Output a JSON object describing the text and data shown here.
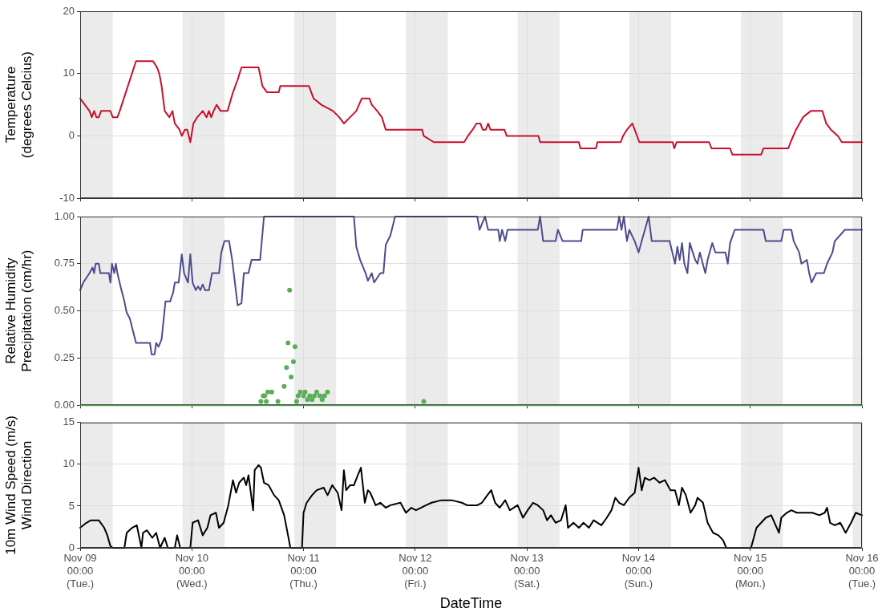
{
  "chart_data": [
    {
      "type": "line",
      "ylabel": "Temperature\n(degrees Celcius)",
      "xlim": [
        "--11-09T00:00",
        "--11-16T00:00"
      ],
      "ylim": [
        -10,
        20
      ],
      "yticks": [
        -10,
        0,
        10,
        20
      ],
      "tick_labels": "y",
      "grid": true,
      "xticks": [
        {
          "value": "--11-09T00:00",
          "label": null
        },
        {
          "value": "--11-10T00:00",
          "label": null
        },
        {
          "value": "--11-11T00:00",
          "label": null
        },
        {
          "value": "--11-12T00:00",
          "label": null
        },
        {
          "value": "--11-13T00:00",
          "label": null
        },
        {
          "value": "--11-14T00:00",
          "label": null
        },
        {
          "value": "--11-15T00:00",
          "label": null
        },
        {
          "value": "--11-16T00:00",
          "label": null
        }
      ],
      "bands": [
        {
          "axis": "x",
          "from": "--11-09T00:00",
          "to": "--11-09T07:00",
          "color": "#ebebeb"
        },
        {
          "axis": "x",
          "from": "--11-09T22:00",
          "to": "--11-10T07:00",
          "color": "#ebebeb"
        },
        {
          "axis": "x",
          "from": "--11-10T22:00",
          "to": "--11-11T07:00",
          "color": "#ebebeb"
        },
        {
          "axis": "x",
          "from": "--11-11T22:00",
          "to": "--11-12T07:00",
          "color": "#ebebeb"
        },
        {
          "axis": "x",
          "from": "--11-12T22:00",
          "to": "--11-13T07:00",
          "color": "#ebebeb"
        },
        {
          "axis": "x",
          "from": "--11-13T22:00",
          "to": "--11-14T07:00",
          "color": "#ebebeb"
        },
        {
          "axis": "x",
          "from": "--11-14T22:00",
          "to": "--11-15T07:00",
          "color": "#ebebeb"
        },
        {
          "axis": "x",
          "from": "--11-15T22:00",
          "to": "--11-16T00:00",
          "color": "#ebebeb"
        }
      ],
      "series": [
        {
          "type": "line",
          "color": "#c8102e",
          "marker": "none",
          "x": [
            "--11-09T00:00",
            "--11-09T01:00",
            "--11-09T02:00",
            "--11-09T02:30",
            "--11-09T03:00",
            "--11-09T03:30",
            "--11-09T04:00",
            "--11-09T04:30",
            "--11-09T06:30",
            "--11-09T07:00",
            "--11-09T08:00",
            "--11-09T08:30",
            "--11-09T12:00",
            "--11-09T15:40",
            "--11-09T16:30",
            "--11-09T17:00",
            "--11-09T17:30",
            "--11-09T18:10",
            "--11-09T19:10",
            "--11-09T19:50",
            "--11-09T20:20",
            "--11-09T21:20",
            "--11-09T21:50",
            "--11-09T22:30",
            "--11-09T23:00",
            "--11-09T23:40",
            "--11-10T00:20",
            "--11-10T01:10",
            "--11-10T02:20",
            "--11-10T03:10",
            "--11-10T03:40",
            "--11-10T04:10",
            "--11-10T04:40",
            "--11-10T05:20",
            "--11-10T06:10",
            "--11-10T07:40",
            "--11-10T08:50",
            "--11-10T09:50",
            "--11-10T10:40",
            "--11-10T14:20",
            "--11-10T15:10",
            "--11-10T16:10",
            "--11-10T18:40",
            "--11-10T19:00",
            "--11-11T01:10",
            "--11-11T01:40",
            "--11-11T02:10",
            "--11-11T03:50",
            "--11-11T06:20",
            "--11-11T07:40",
            "--11-11T08:40",
            "--11-11T10:00",
            "--11-11T11:20",
            "--11-11T12:30",
            "--11-11T14:10",
            "--11-11T14:40",
            "--11-11T15:50",
            "--11-11T16:50",
            "--11-11T17:40",
            "--11-12T01:30",
            "--11-12T01:50",
            "--11-12T04:00",
            "--11-12T10:30",
            "--11-12T11:20",
            "--11-12T12:20",
            "--11-12T13:10",
            "--11-12T14:00",
            "--11-12T14:30",
            "--11-12T15:10",
            "--11-12T15:40",
            "--11-12T16:10",
            "--11-12T19:10",
            "--11-12T19:40",
            "--11-13T02:30",
            "--11-13T02:50",
            "--11-13T11:10",
            "--11-13T11:30",
            "--11-13T14:50",
            "--11-13T15:10",
            "--11-13T20:10",
            "--11-13T20:40",
            "--11-13T21:30",
            "--11-13T22:40",
            "--11-13T23:10",
            "--11-14T00:10",
            "--11-14T07:20",
            "--11-14T07:40",
            "--11-14T08:10",
            "--11-14T15:10",
            "--11-14T15:40",
            "--11-14T19:40",
            "--11-14T20:10",
            "--11-15T02:20",
            "--11-15T02:50",
            "--11-15T08:10",
            "--11-15T08:40",
            "--11-15T09:50",
            "--11-15T11:20",
            "--11-15T13:00",
            "--11-15T15:30",
            "--11-15T16:20",
            "--11-15T17:20",
            "--11-15T18:50",
            "--11-15T19:40",
            "--11-16T00:00"
          ],
          "values": [
            6,
            5,
            4,
            3,
            4,
            3,
            3,
            4,
            4,
            3,
            3,
            4,
            12,
            12,
            11,
            10,
            8,
            4,
            3,
            4,
            2,
            1,
            0,
            1,
            1,
            -1,
            2,
            3,
            4,
            3,
            4,
            3,
            4,
            5,
            4,
            4,
            7,
            9,
            11,
            11,
            8,
            7,
            7,
            8,
            8,
            7,
            6,
            5,
            4,
            3,
            2,
            3,
            4,
            6,
            6,
            5,
            4,
            3,
            1,
            1,
            0,
            -1,
            -1,
            0,
            1,
            2,
            2,
            1,
            1,
            2,
            1,
            1,
            0,
            0,
            -1,
            -1,
            -2,
            -2,
            -1,
            -1,
            0,
            1,
            2,
            1,
            -1,
            -1,
            -2,
            -1,
            -1,
            -2,
            -2,
            -3,
            -3,
            -2,
            -2,
            -1,
            1,
            3,
            4,
            4,
            2,
            1,
            0,
            -1,
            -1
          ]
        }
      ]
    },
    {
      "type": "line",
      "ylabel": "Relative Humidity\nPrecipitation (cm/hr)",
      "xlim": [
        "--11-09T00:00",
        "--11-16T00:00"
      ],
      "ylim": [
        0,
        1
      ],
      "yticks": [
        {
          "value": 0,
          "label": "0.00"
        },
        {
          "value": 0.25,
          "label": "0.25"
        },
        {
          "value": 0.5,
          "label": "0.50"
        },
        {
          "value": 0.75,
          "label": "0.75"
        },
        {
          "value": 1,
          "label": "1.00"
        }
      ],
      "tick_labels": "y",
      "grid": true,
      "xticks": [
        {
          "value": "--11-09T00:00",
          "label": null
        },
        {
          "value": "--11-10T00:00",
          "label": null
        },
        {
          "value": "--11-11T00:00",
          "label": null
        },
        {
          "value": "--11-12T00:00",
          "label": null
        },
        {
          "value": "--11-13T00:00",
          "label": null
        },
        {
          "value": "--11-14T00:00",
          "label": null
        },
        {
          "value": "--11-15T00:00",
          "label": null
        },
        {
          "value": "--11-16T00:00",
          "label": null
        }
      ],
      "bands": [
        {
          "axis": "x",
          "from": "--11-09T00:00",
          "to": "--11-09T07:00",
          "color": "#ebebeb"
        },
        {
          "axis": "x",
          "from": "--11-09T22:00",
          "to": "--11-10T07:00",
          "color": "#ebebeb"
        },
        {
          "axis": "x",
          "from": "--11-10T22:00",
          "to": "--11-11T07:00",
          "color": "#ebebeb"
        },
        {
          "axis": "x",
          "from": "--11-11T22:00",
          "to": "--11-12T07:00",
          "color": "#ebebeb"
        },
        {
          "axis": "x",
          "from": "--11-12T22:00",
          "to": "--11-13T07:00",
          "color": "#ebebeb"
        },
        {
          "axis": "x",
          "from": "--11-13T22:00",
          "to": "--11-14T07:00",
          "color": "#ebebeb"
        },
        {
          "axis": "x",
          "from": "--11-14T22:00",
          "to": "--11-15T07:00",
          "color": "#ebebeb"
        },
        {
          "axis": "x",
          "from": "--11-15T22:00",
          "to": "--11-16T00:00",
          "color": "#ebebeb"
        }
      ],
      "series": [
        {
          "type": "line",
          "color": "#4e4b8d",
          "marker": "none",
          "x": [
            "--11-09T00:00",
            "--11-09T00:40",
            "--11-09T02:00",
            "--11-09T02:40",
            "--11-09T03:00",
            "--11-09T03:20",
            "--11-09T04:00",
            "--11-09T04:20",
            "--11-09T06:10",
            "--11-09T06:30",
            "--11-09T06:50",
            "--11-09T07:20",
            "--11-09T07:40",
            "--11-09T08:00",
            "--11-09T08:40",
            "--11-09T09:30",
            "--11-09T10:00",
            "--11-09T10:40",
            "--11-09T12:00",
            "--11-09T15:00",
            "--11-09T15:20",
            "--11-09T16:00",
            "--11-09T16:20",
            "--11-09T16:50",
            "--11-09T17:30",
            "--11-09T18:20",
            "--11-09T19:20",
            "--11-09T20:00",
            "--11-09T20:20",
            "--11-09T21:10",
            "--11-09T21:50",
            "--11-09T22:20",
            "--11-09T23:10",
            "--11-09T23:40",
            "--11-10T00:10",
            "--11-10T00:50",
            "--11-10T01:20",
            "--11-10T01:50",
            "--11-10T02:20",
            "--11-10T02:50",
            "--11-10T03:40",
            "--11-10T04:20",
            "--11-10T05:50",
            "--11-10T06:20",
            "--11-10T07:00",
            "--11-10T08:00",
            "--11-10T08:40",
            "--11-10T09:50",
            "--11-10T10:40",
            "--11-10T11:10",
            "--11-10T12:10",
            "--11-10T12:50",
            "--11-10T14:40",
            "--11-10T15:30",
            "--11-11T10:50",
            "--11-11T11:20",
            "--11-11T12:10",
            "--11-11T13:20",
            "--11-11T13:50",
            "--11-11T14:40",
            "--11-11T15:10",
            "--11-11T16:30",
            "--11-11T17:10",
            "--11-11T17:40",
            "--11-11T18:40",
            "--11-11T19:40",
            "--11-12T13:20",
            "--11-12T13:50",
            "--11-12T15:00",
            "--11-12T15:40",
            "--11-12T17:50",
            "--11-12T18:10",
            "--11-12T18:40",
            "--11-12T19:20",
            "--11-12T19:50",
            "--11-13T02:20",
            "--11-13T02:50",
            "--11-13T03:30",
            "--11-13T06:10",
            "--11-13T06:40",
            "--11-13T07:40",
            "--11-13T11:40",
            "--11-13T12:00",
            "--11-13T19:20",
            "--11-13T19:50",
            "--11-13T20:20",
            "--11-13T20:50",
            "--11-13T21:30",
            "--11-13T22:00",
            "--11-13T23:10",
            "--11-14T00:00",
            "--11-14T00:40",
            "--11-14T02:10",
            "--11-14T02:50",
            "--11-14T06:40",
            "--11-14T07:50",
            "--11-14T08:20",
            "--11-14T08:50",
            "--11-14T09:20",
            "--11-14T09:50",
            "--11-14T10:30",
            "--11-14T11:00",
            "--11-14T12:10",
            "--11-14T12:40",
            "--11-14T13:10",
            "--11-14T14:20",
            "--11-14T14:50",
            "--11-14T15:50",
            "--11-14T16:30",
            "--11-14T18:40",
            "--11-14T19:10",
            "--11-14T19:40",
            "--11-14T20:40",
            "--11-15T02:50",
            "--11-15T03:20",
            "--11-15T06:40",
            "--11-15T07:10",
            "--11-15T08:50",
            "--11-15T09:20",
            "--11-15T10:30",
            "--11-15T11:00",
            "--11-15T12:10",
            "--11-15T12:40",
            "--11-15T13:10",
            "--11-15T14:10",
            "--11-15T15:50",
            "--11-15T16:30",
            "--11-15T17:40",
            "--11-15T18:10",
            "--11-15T20:20",
            "--11-16T00:00"
          ],
          "values": [
            0.61,
            0.65,
            0.7,
            0.73,
            0.7,
            0.75,
            0.75,
            0.7,
            0.7,
            0.65,
            0.75,
            0.7,
            0.75,
            0.7,
            0.63,
            0.55,
            0.49,
            0.46,
            0.33,
            0.33,
            0.27,
            0.27,
            0.33,
            0.31,
            0.35,
            0.55,
            0.55,
            0.6,
            0.65,
            0.65,
            0.8,
            0.7,
            0.65,
            0.8,
            0.65,
            0.61,
            0.63,
            0.61,
            0.64,
            0.61,
            0.61,
            0.7,
            0.7,
            0.81,
            0.87,
            0.87,
            0.77,
            0.53,
            0.54,
            0.7,
            0.7,
            0.77,
            0.77,
            1,
            1,
            0.84,
            0.77,
            0.7,
            0.66,
            0.7,
            0.65,
            0.7,
            0.7,
            0.85,
            0.9,
            1,
            1,
            0.93,
            1,
            0.93,
            0.93,
            0.87,
            0.93,
            0.87,
            0.93,
            0.93,
            1,
            0.87,
            0.87,
            0.93,
            0.87,
            0.87,
            0.93,
            0.93,
            1,
            0.93,
            1,
            0.87,
            0.93,
            0.87,
            0.81,
            0.87,
            1,
            0.87,
            0.87,
            0.75,
            0.84,
            0.77,
            0.86,
            0.75,
            0.7,
            0.86,
            0.77,
            0.75,
            0.81,
            0.7,
            0.77,
            0.86,
            0.81,
            0.81,
            0.75,
            0.86,
            0.93,
            0.93,
            0.87,
            0.87,
            0.93,
            0.93,
            0.87,
            0.81,
            0.75,
            0.77,
            0.7,
            0.65,
            0.7,
            0.7,
            0.75,
            0.81,
            0.87,
            0.93,
            0.93
          ]
        },
        {
          "type": "line",
          "color": "#5aae5a",
          "marker": "none",
          "x": [
            "--11-09T00:00",
            "--11-16T00:00"
          ],
          "values": [
            0,
            0
          ]
        },
        {
          "type": "scatter",
          "color": "#5aae5a",
          "marker": "circle",
          "x": [
            "--11-10T14:50",
            "--11-10T15:20",
            "--11-10T15:40",
            "--11-10T16:00",
            "--11-10T16:20",
            "--11-10T17:10",
            "--11-10T18:30",
            "--11-10T19:50",
            "--11-10T20:20",
            "--11-10T20:40",
            "--11-10T21:00",
            "--11-10T21:20",
            "--11-10T21:50",
            "--11-10T22:10",
            "--11-10T22:30",
            "--11-10T22:50",
            "--11-10T23:20",
            "--11-11T00:00",
            "--11-11T00:20",
            "--11-11T00:50",
            "--11-11T01:20",
            "--11-11T01:50",
            "--11-11T02:20",
            "--11-11T02:50",
            "--11-11T03:30",
            "--11-11T04:00",
            "--11-11T04:30",
            "--11-11T05:10",
            "--11-12T01:50"
          ],
          "values": [
            0.02,
            0.05,
            0.05,
            0.02,
            0.07,
            0.07,
            0.02,
            0.1,
            0.2,
            0.33,
            0.61,
            0.15,
            0.23,
            0.31,
            0.02,
            0.05,
            0.07,
            0.05,
            0.07,
            0.03,
            0.05,
            0.03,
            0.05,
            0.07,
            0.05,
            0.03,
            0.05,
            0.07,
            0.02
          ]
        }
      ]
    },
    {
      "type": "line",
      "ylabel": "10m Wind Speed (m/s)\nWind Direction",
      "xlabel": "DateTime",
      "xlim": [
        "--11-09T00:00",
        "--11-16T00:00"
      ],
      "ylim": [
        0,
        15
      ],
      "yticks": [
        0,
        5,
        10,
        15
      ],
      "grid": true,
      "xticks": [
        {
          "value": "--11-09T00:00",
          "label": "Nov 09\n00:00\n(Tue.)"
        },
        {
          "value": "--11-10T00:00",
          "label": "Nov 10\n00:00\n(Wed.)"
        },
        {
          "value": "--11-11T00:00",
          "label": "Nov 11\n00:00\n(Thu.)"
        },
        {
          "value": "--11-12T00:00",
          "label": "Nov 12\n00:00\n(Fri.)"
        },
        {
          "value": "--11-13T00:00",
          "label": "Nov 13\n00:00\n(Sat.)"
        },
        {
          "value": "--11-14T00:00",
          "label": "Nov 14\n00:00\n(Sun.)"
        },
        {
          "value": "--11-15T00:00",
          "label": "Nov 15\n00:00\n(Mon.)"
        },
        {
          "value": "--11-16T00:00",
          "label": "Nov 16\n00:00\n(Tue.)"
        }
      ],
      "bands": [
        {
          "axis": "x",
          "from": "--11-09T00:00",
          "to": "--11-09T07:00",
          "color": "#ebebeb"
        },
        {
          "axis": "x",
          "from": "--11-09T22:00",
          "to": "--11-10T07:00",
          "color": "#ebebeb"
        },
        {
          "axis": "x",
          "from": "--11-10T22:00",
          "to": "--11-11T07:00",
          "color": "#ebebeb"
        },
        {
          "axis": "x",
          "from": "--11-11T22:00",
          "to": "--11-12T07:00",
          "color": "#ebebeb"
        },
        {
          "axis": "x",
          "from": "--11-12T22:00",
          "to": "--11-13T07:00",
          "color": "#ebebeb"
        },
        {
          "axis": "x",
          "from": "--11-13T22:00",
          "to": "--11-14T07:00",
          "color": "#ebebeb"
        },
        {
          "axis": "x",
          "from": "--11-14T22:00",
          "to": "--11-15T07:00",
          "color": "#ebebeb"
        },
        {
          "axis": "x",
          "from": "--11-15T22:00",
          "to": "--11-16T00:00",
          "color": "#ebebeb"
        }
      ],
      "series": [
        {
          "type": "line",
          "color": "#000000",
          "marker": "none",
          "x": [
            "--11-09T00:00",
            "--11-09T01:20",
            "--11-09T02:20",
            "--11-09T04:00",
            "--11-09T05:10",
            "--11-09T05:50",
            "--11-09T06:30",
            "--11-09T07:00",
            "--11-09T09:30",
            "--11-09T10:00",
            "--11-09T11:10",
            "--11-09T12:10",
            "--11-09T13:10",
            "--11-09T13:30",
            "--11-09T14:20",
            "--11-09T15:30",
            "--11-09T16:20",
            "--11-09T17:10",
            "--11-09T18:10",
            "--11-09T18:50",
            "--11-09T20:20",
            "--11-09T20:50",
            "--11-09T21:30",
            "--11-09T23:40",
            "--11-10T00:10",
            "--11-10T01:20",
            "--11-10T02:20",
            "--11-10T03:20",
            "--11-10T04:00",
            "--11-10T05:10",
            "--11-10T05:50",
            "--11-10T06:50",
            "--11-10T07:50",
            "--11-10T08:50",
            "--11-10T09:30",
            "--11-10T10:10",
            "--11-10T11:10",
            "--11-10T11:40",
            "--11-10T12:10",
            "--11-10T13:10",
            "--11-10T13:30",
            "--11-10T14:20",
            "--11-10T14:50",
            "--11-10T15:30",
            "--11-10T16:30",
            "--11-10T17:40",
            "--11-10T18:40",
            "--11-10T19:50",
            "--11-10T20:40",
            "--11-10T21:10",
            "--11-10T23:40",
            "--11-11T00:00",
            "--11-11T00:40",
            "--11-11T01:50",
            "--11-11T02:50",
            "--11-11T04:20",
            "--11-11T05:10",
            "--11-11T06:10",
            "--11-11T07:20",
            "--11-11T08:10",
            "--11-11T08:40",
            "--11-11T09:10",
            "--11-11T10:00",
            "--11-11T10:50",
            "--11-11T11:40",
            "--11-11T12:20",
            "--11-11T13:10",
            "--11-11T13:50",
            "--11-11T14:20",
            "--11-11T15:30",
            "--11-11T16:30",
            "--11-11T17:40",
            "--11-11T18:40",
            "--11-11T20:50",
            "--11-11T22:00",
            "--11-11T23:10",
            "--11-12T00:10",
            "--11-12T02:20",
            "--11-12T03:30",
            "--11-12T05:40",
            "--11-12T07:50",
            "--11-12T10:00",
            "--11-12T11:10",
            "--11-12T13:20",
            "--11-12T14:20",
            "--11-12T15:30",
            "--11-12T16:20",
            "--11-12T17:10",
            "--11-12T18:10",
            "--11-12T19:20",
            "--11-12T20:20",
            "--11-12T22:00",
            "--11-12T23:10",
            "--11-13T00:10",
            "--11-13T01:20",
            "--11-13T02:20",
            "--11-13T03:30",
            "--11-13T04:20",
            "--11-13T05:10",
            "--11-13T06:10",
            "--11-13T07:20",
            "--11-13T08:20",
            "--11-13T08:50",
            "--11-13T10:00",
            "--11-13T11:10",
            "--11-13T12:10",
            "--11-13T13:20",
            "--11-13T14:20",
            "--11-13T16:00",
            "--11-13T17:10",
            "--11-13T18:10",
            "--11-13T19:00",
            "--11-13T19:50",
            "--11-13T20:50",
            "--11-13T22:00",
            "--11-13T23:10",
            "--11-14T00:00",
            "--11-14T00:40",
            "--11-14T01:20",
            "--11-14T02:20",
            "--11-14T03:20",
            "--11-14T04:30",
            "--11-14T05:40",
            "--11-14T06:50",
            "--11-14T07:50",
            "--11-14T08:40",
            "--11-14T09:20",
            "--11-14T10:10",
            "--11-14T11:10",
            "--11-14T12:10",
            "--11-14T12:40",
            "--11-14T13:50",
            "--11-14T14:50",
            "--11-14T16:00",
            "--11-14T17:10",
            "--11-14T18:10",
            "--11-14T18:50",
            "--11-15T00:10",
            "--11-15T01:20",
            "--11-15T02:20",
            "--11-15T03:20",
            "--11-15T04:30",
            "--11-15T06:10",
            "--11-15T06:40",
            "--11-15T07:50",
            "--11-15T08:50",
            "--11-15T10:00",
            "--11-15T11:40",
            "--11-15T13:20",
            "--11-15T14:50",
            "--11-15T16:00",
            "--11-15T16:30",
            "--11-15T17:10",
            "--11-15T18:10",
            "--11-15T19:20",
            "--11-15T20:30",
            "--11-15T21:40",
            "--11-15T22:40",
            "--11-16T00:00"
          ],
          "values": [
            2.4,
            3,
            3.3,
            3.3,
            2.4,
            1.5,
            0.2,
            0,
            0,
            1.8,
            2.4,
            2.7,
            0,
            1.8,
            2.1,
            1.2,
            1.8,
            0,
            1.2,
            0,
            0,
            1.5,
            0,
            0,
            3,
            3.3,
            1.5,
            2.4,
            3.9,
            4.2,
            2.4,
            3,
            5.1,
            8.1,
            6.6,
            7.8,
            8.4,
            7.5,
            8.7,
            4.5,
            9.3,
            9.9,
            9.6,
            7.8,
            7.5,
            6.3,
            5.7,
            3.9,
            1.5,
            0,
            0,
            4.2,
            5.4,
            6.3,
            6.9,
            7.2,
            6.3,
            7.5,
            6.6,
            4.5,
            9.3,
            6.9,
            7.5,
            7.5,
            8.7,
            9.6,
            5.4,
            6.9,
            6.6,
            5.1,
            5.4,
            4.8,
            5.1,
            5.4,
            4.2,
            4.8,
            4.5,
            5.1,
            5.4,
            5.7,
            5.7,
            5.4,
            5.1,
            5.1,
            5.4,
            6.3,
            6.9,
            5.4,
            4.8,
            5.7,
            4.5,
            5.1,
            3.6,
            4.5,
            5.4,
            5.1,
            4.5,
            3.3,
            3.9,
            3,
            3.3,
            5.1,
            2.4,
            3,
            2.4,
            3,
            2.4,
            3.3,
            2.7,
            3.6,
            4.5,
            6,
            5.4,
            5.1,
            6,
            6.6,
            9.6,
            6.9,
            8.4,
            8.1,
            8.4,
            7.8,
            8.1,
            6.9,
            6.9,
            5.1,
            7.2,
            6.3,
            4.2,
            5.1,
            6,
            5.4,
            3,
            1.8,
            1.5,
            0.9,
            0,
            0,
            2.4,
            3,
            3.6,
            3.9,
            1.8,
            3.6,
            4.2,
            4.5,
            4.2,
            4.2,
            4.2,
            3.9,
            4.2,
            4.8,
            3,
            2.7,
            3,
            1.8,
            3,
            4.2,
            3.9
          ]
        }
      ]
    }
  ]
}
